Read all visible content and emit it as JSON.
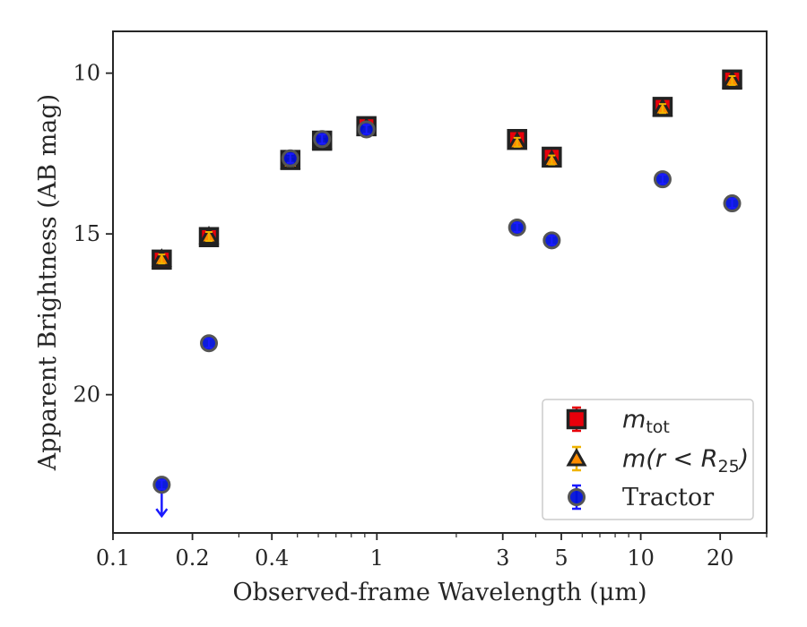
{
  "chart_data": {
    "type": "scatter",
    "xlabel": "Observed-frame Wavelength (μm)",
    "ylabel": "Apparent Brightness (AB mag)",
    "xscale": "log",
    "xlim": [
      0.1,
      30
    ],
    "ylim": [
      24.3,
      8.7
    ],
    "y_inverted": true,
    "x_ticks": [
      0.1,
      0.2,
      0.4,
      1,
      3,
      5,
      10,
      20
    ],
    "x_tick_labels": [
      "0.1",
      "0.2",
      "0.4",
      "1",
      "3",
      "5",
      "10",
      "20"
    ],
    "y_ticks": [
      10,
      15,
      20
    ],
    "y_tick_labels": [
      "10",
      "15",
      "20"
    ],
    "grid": false,
    "legend_position": "lower-right",
    "series": [
      {
        "name": "m_tot",
        "legend_main": "m",
        "legend_sub": "tot",
        "marker": "square",
        "color": "#e8000b",
        "edgecolor": "#222222",
        "errorcolor": "#e8000b",
        "points": [
          {
            "x": 0.153,
            "y": 15.8
          },
          {
            "x": 0.231,
            "y": 15.1
          },
          {
            "x": 0.47,
            "y": 12.7
          },
          {
            "x": 0.62,
            "y": 12.1
          },
          {
            "x": 0.913,
            "y": 11.65
          },
          {
            "x": 3.4,
            "y": 12.05
          },
          {
            "x": 4.6,
            "y": 12.6
          },
          {
            "x": 12.1,
            "y": 11.05
          },
          {
            "x": 22.2,
            "y": 10.2
          }
        ]
      },
      {
        "name": "m(r < R_25)",
        "legend_main": "m(r < R",
        "legend_sub": "25",
        "legend_tail": ")",
        "marker": "triangle",
        "color": "#ff8c00",
        "edgecolor": "#222222",
        "errorcolor": "#f0b400",
        "points": [
          {
            "x": 0.153,
            "y": 15.78
          },
          {
            "x": 0.231,
            "y": 15.08
          },
          {
            "x": 0.47,
            "y": 12.75
          },
          {
            "x": 0.62,
            "y": 12.12
          },
          {
            "x": 0.913,
            "y": 11.7
          },
          {
            "x": 3.4,
            "y": 12.15
          },
          {
            "x": 4.6,
            "y": 12.7
          },
          {
            "x": 12.1,
            "y": 11.1
          },
          {
            "x": 22.2,
            "y": 10.23
          }
        ]
      },
      {
        "name": "Tractor",
        "legend_main": "Tractor",
        "marker": "circle",
        "color": "#0010d9",
        "edgecolor": "#555555",
        "errorcolor": "#1a1aff",
        "points": [
          {
            "x": 0.153,
            "y": 22.8,
            "upper_limit": true
          },
          {
            "x": 0.231,
            "y": 18.4
          },
          {
            "x": 0.47,
            "y": 12.65
          },
          {
            "x": 0.62,
            "y": 12.05
          },
          {
            "x": 0.913,
            "y": 11.75
          },
          {
            "x": 3.4,
            "y": 14.8
          },
          {
            "x": 4.6,
            "y": 15.2
          },
          {
            "x": 12.1,
            "y": 13.3
          },
          {
            "x": 22.2,
            "y": 14.05
          }
        ]
      }
    ]
  }
}
